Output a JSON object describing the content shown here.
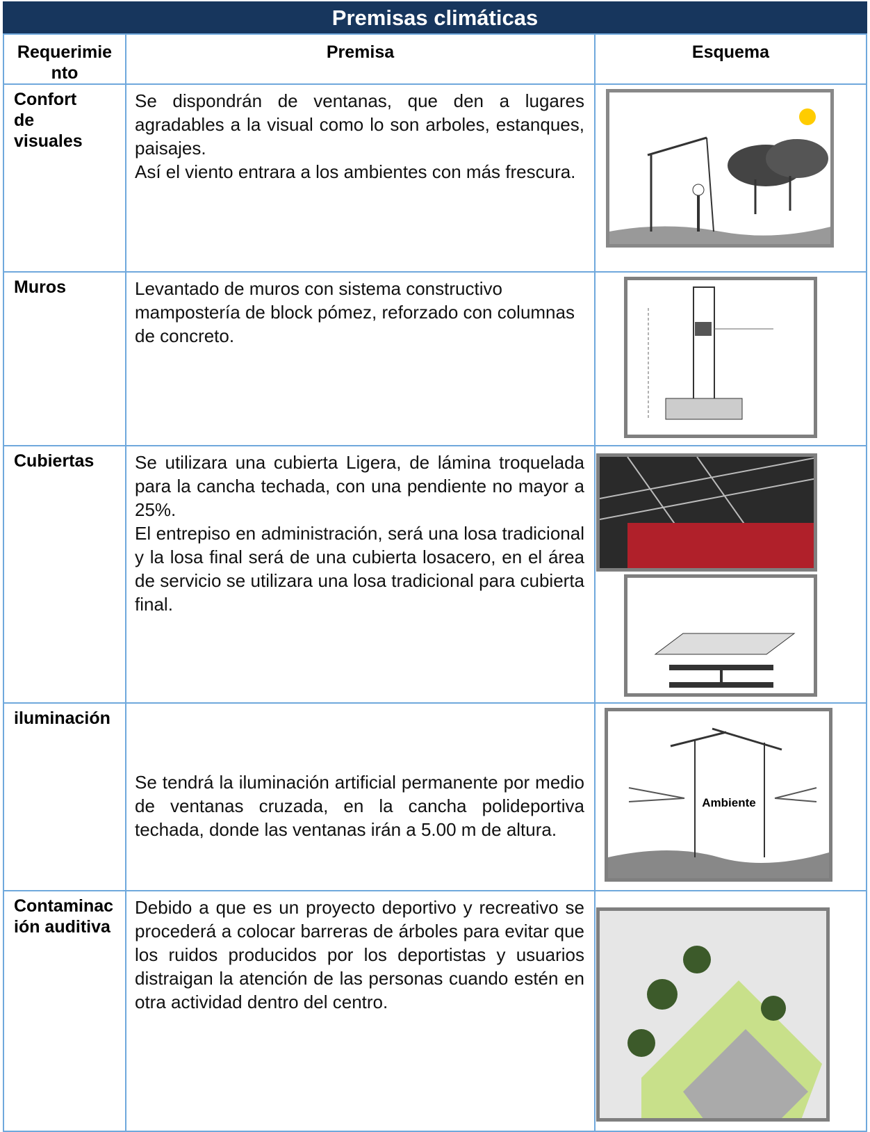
{
  "header": {
    "title": "Premisas climáticas"
  },
  "table": {
    "columns": [
      "Requerimiento",
      "Premisa",
      "Esquema"
    ],
    "rows": [
      {
        "requirement": "Confort de visuales",
        "premise": [
          "Se dispondrán de ventanas, que den a lugares agradables a la visual como lo son arboles, estanques, paisajes.",
          "Así el viento entrara a los ambientes con más frescura."
        ]
      },
      {
        "requirement": "Muros",
        "premise": [
          "Levantado de muros con sistema constructivo mampostería de block pómez, reforzado con columnas de concreto."
        ]
      },
      {
        "requirement": "Cubiertas",
        "premise": [
          "Se utilizara una cubierta Ligera, de lámina troquelada para la cancha techada, con una pendiente no mayor a 25%.",
          "El entrepiso en administración, será una losa tradicional y la losa final será de una cubierta losacero, en el área de servicio se utilizara una losa tradicional para cubierta final."
        ]
      },
      {
        "requirement": "iluminación",
        "premise": [
          "Se tendrá la iluminación artificial permanente por medio de ventanas cruzada, en la cancha polideportiva techada, donde las ventanas irán a 5.00 m de altura."
        ]
      },
      {
        "requirement": "Contaminación auditiva",
        "premise": [
          "Debido a que es un proyecto deportivo y recreativo se procederá a colocar barreras de árboles para evitar que los ruidos producidos por los deportistas y usuarios distraigan la atención de las personas cuando estén en otra actividad dentro del centro."
        ]
      }
    ],
    "sketch_label": "Ambiente"
  }
}
